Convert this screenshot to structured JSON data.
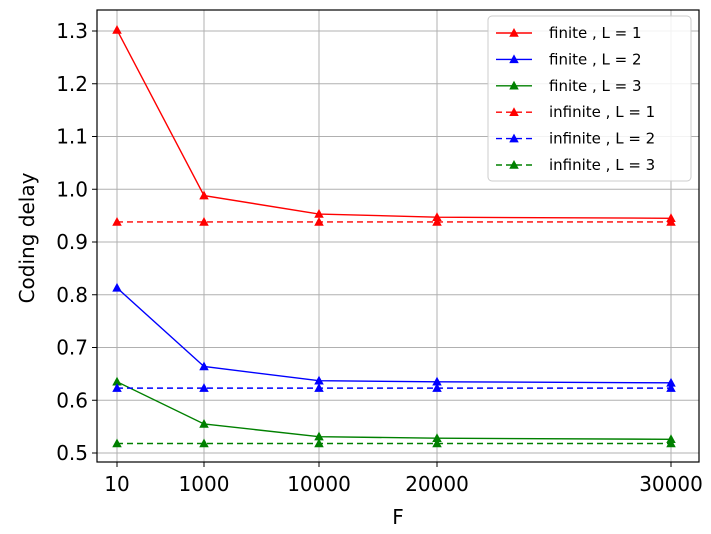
{
  "chart_data": {
    "type": "line",
    "title": "",
    "xlabel": "F",
    "ylabel": "Coding delay",
    "x": [
      10,
      1000,
      10000,
      20000,
      30000
    ],
    "x_tick_labels": [
      "10",
      "1000",
      "10000",
      "20000",
      "30000"
    ],
    "x_scale": "categorical-nonuniform",
    "ylim": [
      0.48,
      1.34
    ],
    "y_ticks": [
      0.5,
      0.6,
      0.7,
      0.8,
      0.9,
      1.0,
      1.1,
      1.2,
      1.3
    ],
    "y_tick_labels": [
      "0.5",
      "0.6",
      "0.7",
      "0.8",
      "0.9",
      "1.0",
      "1.1",
      "1.2",
      "1.3"
    ],
    "grid": true,
    "legend_position": "top-right",
    "series": [
      {
        "name": "finite , L = 1",
        "color": "#ff0000",
        "linestyle": "solid",
        "marker": "triangle",
        "values": [
          1.302,
          0.988,
          0.953,
          0.947,
          0.945
        ]
      },
      {
        "name": "finite , L = 2",
        "color": "#0000ff",
        "linestyle": "solid",
        "marker": "triangle",
        "values": [
          0.813,
          0.664,
          0.637,
          0.635,
          0.633
        ]
      },
      {
        "name": "finite , L = 3",
        "color": "#008000",
        "linestyle": "solid",
        "marker": "triangle",
        "values": [
          0.635,
          0.555,
          0.531,
          0.528,
          0.526
        ]
      },
      {
        "name": "infinite , L = 1",
        "color": "#ff0000",
        "linestyle": "dashed",
        "marker": "triangle",
        "values": [
          0.938,
          0.938,
          0.938,
          0.938,
          0.938
        ]
      },
      {
        "name": "infinite , L = 2",
        "color": "#0000ff",
        "linestyle": "dashed",
        "marker": "triangle",
        "values": [
          0.623,
          0.623,
          0.623,
          0.623,
          0.623
        ]
      },
      {
        "name": "infinite , L = 3",
        "color": "#008000",
        "linestyle": "dashed",
        "marker": "triangle",
        "values": [
          0.518,
          0.518,
          0.518,
          0.518,
          0.518
        ]
      }
    ]
  }
}
